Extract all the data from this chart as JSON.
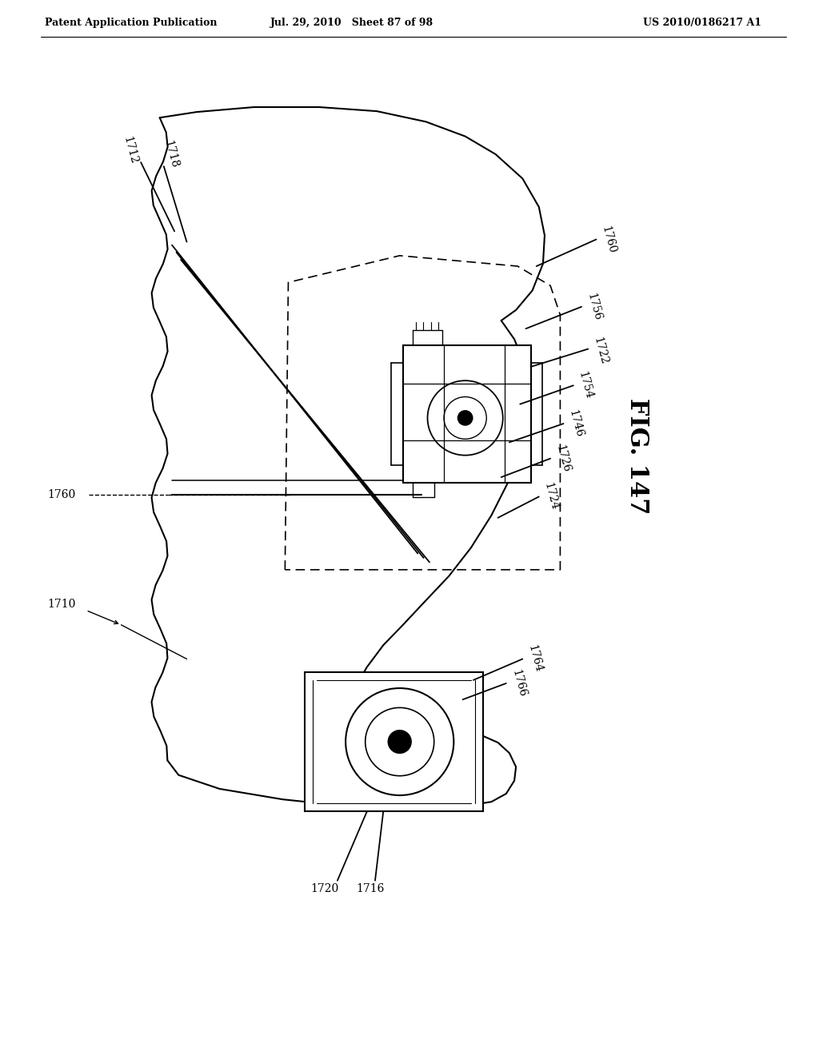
{
  "bg_color": "#ffffff",
  "header_left": "Patent Application Publication",
  "header_center": "Jul. 29, 2010   Sheet 87 of 98",
  "header_right": "US 2010/0186217 A1",
  "fig_label": "FIG. 147",
  "line_color": "#000000"
}
